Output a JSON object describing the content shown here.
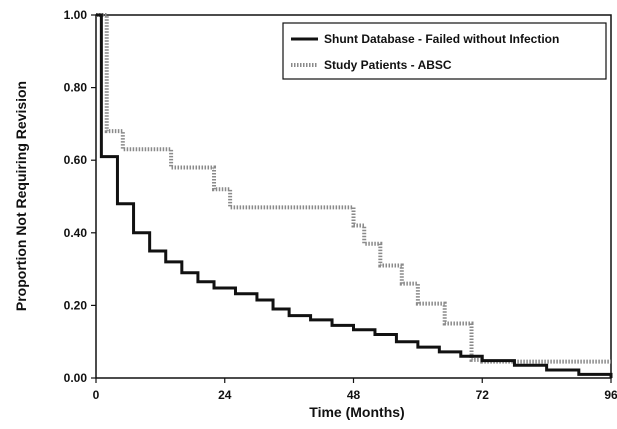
{
  "chart_data": {
    "type": "line",
    "title": "",
    "xlabel": "Time (Months)",
    "ylabel": "Proportion Not Requiring Revision",
    "xlim": [
      0,
      96
    ],
    "ylim": [
      0,
      1
    ],
    "x_ticks": [
      0,
      24,
      48,
      72,
      96
    ],
    "x_tick_labels": [
      "0",
      "24",
      "48",
      "72",
      "96"
    ],
    "y_ticks": [
      0,
      0.2,
      0.4,
      0.6,
      0.8,
      1.0
    ],
    "y_tick_labels": [
      "0.00",
      "0.20",
      "0.40",
      "0.60",
      "0.80",
      "1.00"
    ],
    "grid": false,
    "legend_position": "top-right",
    "series": [
      {
        "name": "Shunt Database - Failed without Infection",
        "color": "#111111",
        "style": "solid",
        "x": [
          0,
          1,
          4,
          7,
          10,
          13,
          16,
          19,
          22,
          26,
          30,
          33,
          36,
          40,
          44,
          48,
          52,
          56,
          60,
          64,
          68,
          72,
          78,
          84,
          90,
          96
        ],
        "y": [
          1.0,
          0.61,
          0.48,
          0.4,
          0.35,
          0.32,
          0.29,
          0.265,
          0.248,
          0.232,
          0.215,
          0.19,
          0.172,
          0.16,
          0.145,
          0.133,
          0.12,
          0.1,
          0.085,
          0.072,
          0.06,
          0.048,
          0.035,
          0.022,
          0.01,
          0.0
        ]
      },
      {
        "name": "Study Patients - ABSC",
        "color": "#8a8a8a",
        "style": "dotted",
        "x": [
          0,
          2,
          5,
          14,
          22,
          25,
          48,
          50,
          53,
          57,
          60,
          65,
          70,
          72,
          96
        ],
        "y": [
          1.0,
          0.68,
          0.63,
          0.58,
          0.52,
          0.47,
          0.42,
          0.37,
          0.31,
          0.26,
          0.205,
          0.15,
          0.05,
          0.045,
          0.045
        ]
      }
    ]
  }
}
